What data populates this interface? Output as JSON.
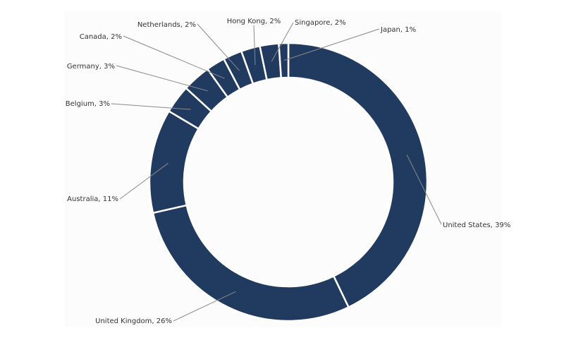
{
  "chart_data": {
    "type": "pie",
    "variant": "donut",
    "title": "",
    "color": "#213a5f",
    "slices": [
      {
        "label": "United States",
        "value": 39,
        "text": "United States, 39%"
      },
      {
        "label": "United Kingdom",
        "value": 26,
        "text": "United Kingdom, 26%"
      },
      {
        "label": "Australia",
        "value": 11,
        "text": "Australia, 11%"
      },
      {
        "label": "Belgium",
        "value": 3,
        "text": "Belgium, 3%"
      },
      {
        "label": "Germany",
        "value": 3,
        "text": "Germany, 3%"
      },
      {
        "label": "Canada",
        "value": 2,
        "text": "Canada, 2%"
      },
      {
        "label": "Netherlands",
        "value": 2,
        "text": "Netherlands, 2%"
      },
      {
        "label": "Hong Kong",
        "value": 2,
        "text": "Hong Kong, 2%"
      },
      {
        "label": "Singapore",
        "value": 2,
        "text": "Singapore, 2%"
      },
      {
        "label": "Japan",
        "value": 1,
        "text": "Japan, 1%"
      }
    ]
  }
}
